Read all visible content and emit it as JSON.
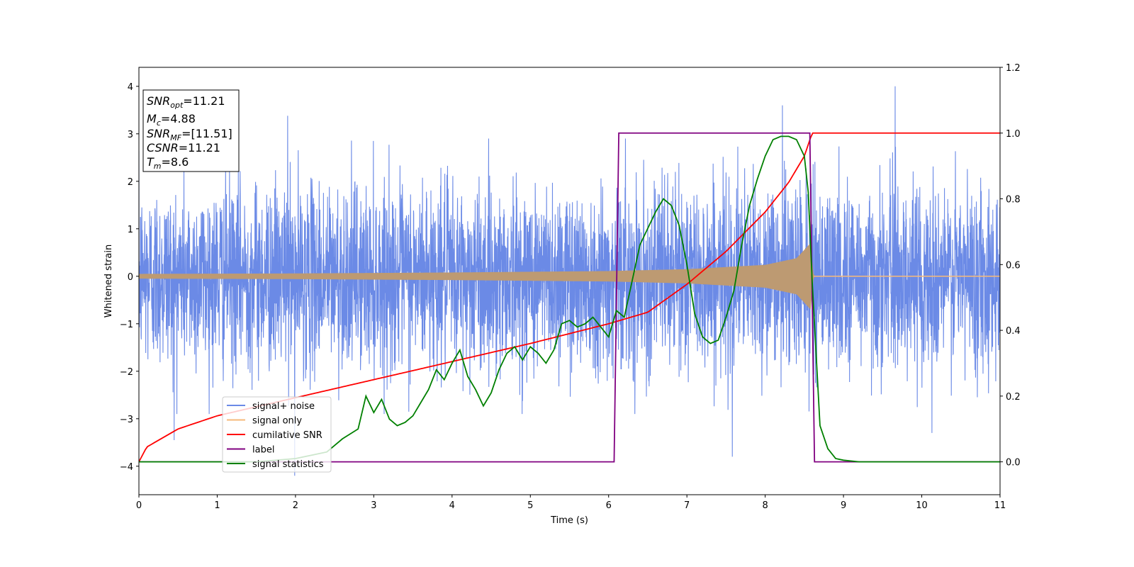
{
  "chart_data": {
    "type": "line",
    "xlabel": "Time (s)",
    "ylabel": "Whitened strain",
    "xlim": [
      0,
      11
    ],
    "ylim_left": [
      -4.6,
      4.4
    ],
    "ylim_right": [
      -0.1,
      1.2
    ],
    "xticks": [
      "0",
      "1",
      "2",
      "3",
      "4",
      "5",
      "6",
      "7",
      "8",
      "9",
      "10",
      "11"
    ],
    "yticks_left": [
      "−4",
      "−3",
      "−2",
      "−1",
      "0",
      "1",
      "2",
      "3",
      "4"
    ],
    "yticks_right": [
      "0.0",
      "0.2",
      "0.4",
      "0.6",
      "0.8",
      "1.0",
      "1.2"
    ],
    "grid": false,
    "legend_position": "lower-left",
    "info_box": {
      "lines": [
        {
          "sym": "SNR",
          "sub": "opt",
          "val": "=11.21"
        },
        {
          "sym": "M",
          "sub": "c",
          "val": "=4.88"
        },
        {
          "sym": "SNR",
          "sub": "MF",
          "val": "=[11.51]"
        },
        {
          "sym": "CSNR",
          "sub": "",
          "val": "=11.21"
        },
        {
          "sym": "T",
          "sub": "m",
          "val": "=8.6"
        }
      ]
    },
    "series": [
      {
        "name": "signal+ noise",
        "color": "#6b8ae6",
        "axis": "left",
        "description_values": {
          "noise_std": 0.95,
          "extremes": [
            [
              0.45,
              -3.45
            ],
            [
              1.9,
              3.38
            ],
            [
              1.99,
              -4.2
            ],
            [
              7.58,
              -3.8
            ],
            [
              8.22,
              3.6
            ],
            [
              9.66,
              4.0
            ],
            [
              10.13,
              -3.3
            ]
          ]
        }
      },
      {
        "name": "signal only",
        "color": "#f5b97a",
        "axis": "left",
        "envelope": {
          "x": [
            0,
            2,
            4,
            6,
            7,
            8,
            8.4,
            8.58,
            8.62,
            11
          ],
          "amp": [
            0.05,
            0.06,
            0.08,
            0.11,
            0.15,
            0.24,
            0.38,
            0.7,
            0.0,
            0.0
          ]
        }
      },
      {
        "name": "cumilative SNR",
        "color": "#ff0000",
        "axis": "right",
        "x": [
          0,
          0.1,
          0.5,
          1,
          2,
          3,
          4,
          5,
          6,
          6.5,
          7,
          7.5,
          8,
          8.3,
          8.5,
          8.6,
          11
        ],
        "y": [
          0.0,
          0.045,
          0.1,
          0.14,
          0.195,
          0.25,
          0.305,
          0.36,
          0.42,
          0.455,
          0.54,
          0.64,
          0.76,
          0.85,
          0.93,
          1.0,
          1.0
        ]
      },
      {
        "name": "label",
        "color": "#800080",
        "axis": "right",
        "x": [
          0,
          6.07,
          6.13,
          8.57,
          8.63,
          11
        ],
        "y": [
          0.0,
          0.0,
          1.0,
          1.0,
          0.0,
          0.0
        ]
      },
      {
        "name": "signal statistics",
        "color": "#008000",
        "axis": "right",
        "x": [
          0,
          1.5,
          2.0,
          2.2,
          2.4,
          2.5,
          2.6,
          2.8,
          2.9,
          3.0,
          3.1,
          3.2,
          3.3,
          3.4,
          3.5,
          3.6,
          3.7,
          3.8,
          3.9,
          4.0,
          4.1,
          4.2,
          4.3,
          4.4,
          4.5,
          4.6,
          4.7,
          4.8,
          4.9,
          5.0,
          5.1,
          5.2,
          5.3,
          5.4,
          5.5,
          5.6,
          5.7,
          5.8,
          5.9,
          6.0,
          6.1,
          6.2,
          6.3,
          6.4,
          6.5,
          6.6,
          6.7,
          6.8,
          6.9,
          7.0,
          7.1,
          7.2,
          7.3,
          7.4,
          7.5,
          7.6,
          7.7,
          7.8,
          7.9,
          8.0,
          8.1,
          8.2,
          8.3,
          8.4,
          8.5,
          8.55,
          8.6,
          8.7,
          8.8,
          8.9,
          9.0,
          9.2,
          11
        ],
        "y": [
          0.0,
          0.0,
          0.01,
          0.02,
          0.03,
          0.05,
          0.07,
          0.1,
          0.2,
          0.15,
          0.19,
          0.13,
          0.11,
          0.12,
          0.14,
          0.18,
          0.22,
          0.28,
          0.25,
          0.3,
          0.34,
          0.26,
          0.22,
          0.17,
          0.21,
          0.28,
          0.33,
          0.35,
          0.31,
          0.35,
          0.33,
          0.3,
          0.34,
          0.42,
          0.43,
          0.41,
          0.42,
          0.44,
          0.41,
          0.38,
          0.46,
          0.44,
          0.55,
          0.66,
          0.71,
          0.76,
          0.8,
          0.78,
          0.72,
          0.6,
          0.45,
          0.38,
          0.36,
          0.37,
          0.44,
          0.52,
          0.66,
          0.78,
          0.86,
          0.93,
          0.98,
          0.99,
          0.99,
          0.98,
          0.93,
          0.82,
          0.55,
          0.11,
          0.04,
          0.01,
          0.005,
          0.0,
          0.0
        ]
      }
    ]
  }
}
